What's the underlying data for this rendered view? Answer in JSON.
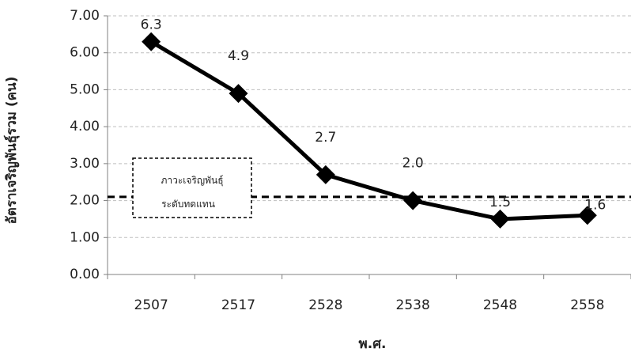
{
  "chart_data": {
    "type": "line",
    "categories": [
      "2507",
      "2517",
      "2528",
      "2538",
      "2548",
      "2558"
    ],
    "series": [
      {
        "values": [
          6.3,
          4.9,
          2.7,
          2.0,
          1.5,
          1.6
        ]
      }
    ],
    "data_labels": [
      "6.3",
      "4.9",
      "2.7",
      "2.0",
      "1.5",
      "1.6"
    ],
    "y_ticks": [
      "0.00",
      "1.00",
      "2.00",
      "3.00",
      "4.00",
      "5.00",
      "6.00",
      "7.00"
    ],
    "ylim": [
      0,
      7
    ],
    "xlabel": "พ.ศ.",
    "ylabel": "อัตราเจริญพันธุ์รวม (คน)",
    "grid": true,
    "reference_line": {
      "value": 2.1,
      "style": "dashed"
    },
    "annotation": {
      "lines": [
        "ภาวะเจริญพันธุ์",
        "ระดับทดแทน"
      ]
    },
    "colors": {
      "line": "#000000",
      "grid": "#bfbfbf",
      "axis": "#808080"
    }
  }
}
